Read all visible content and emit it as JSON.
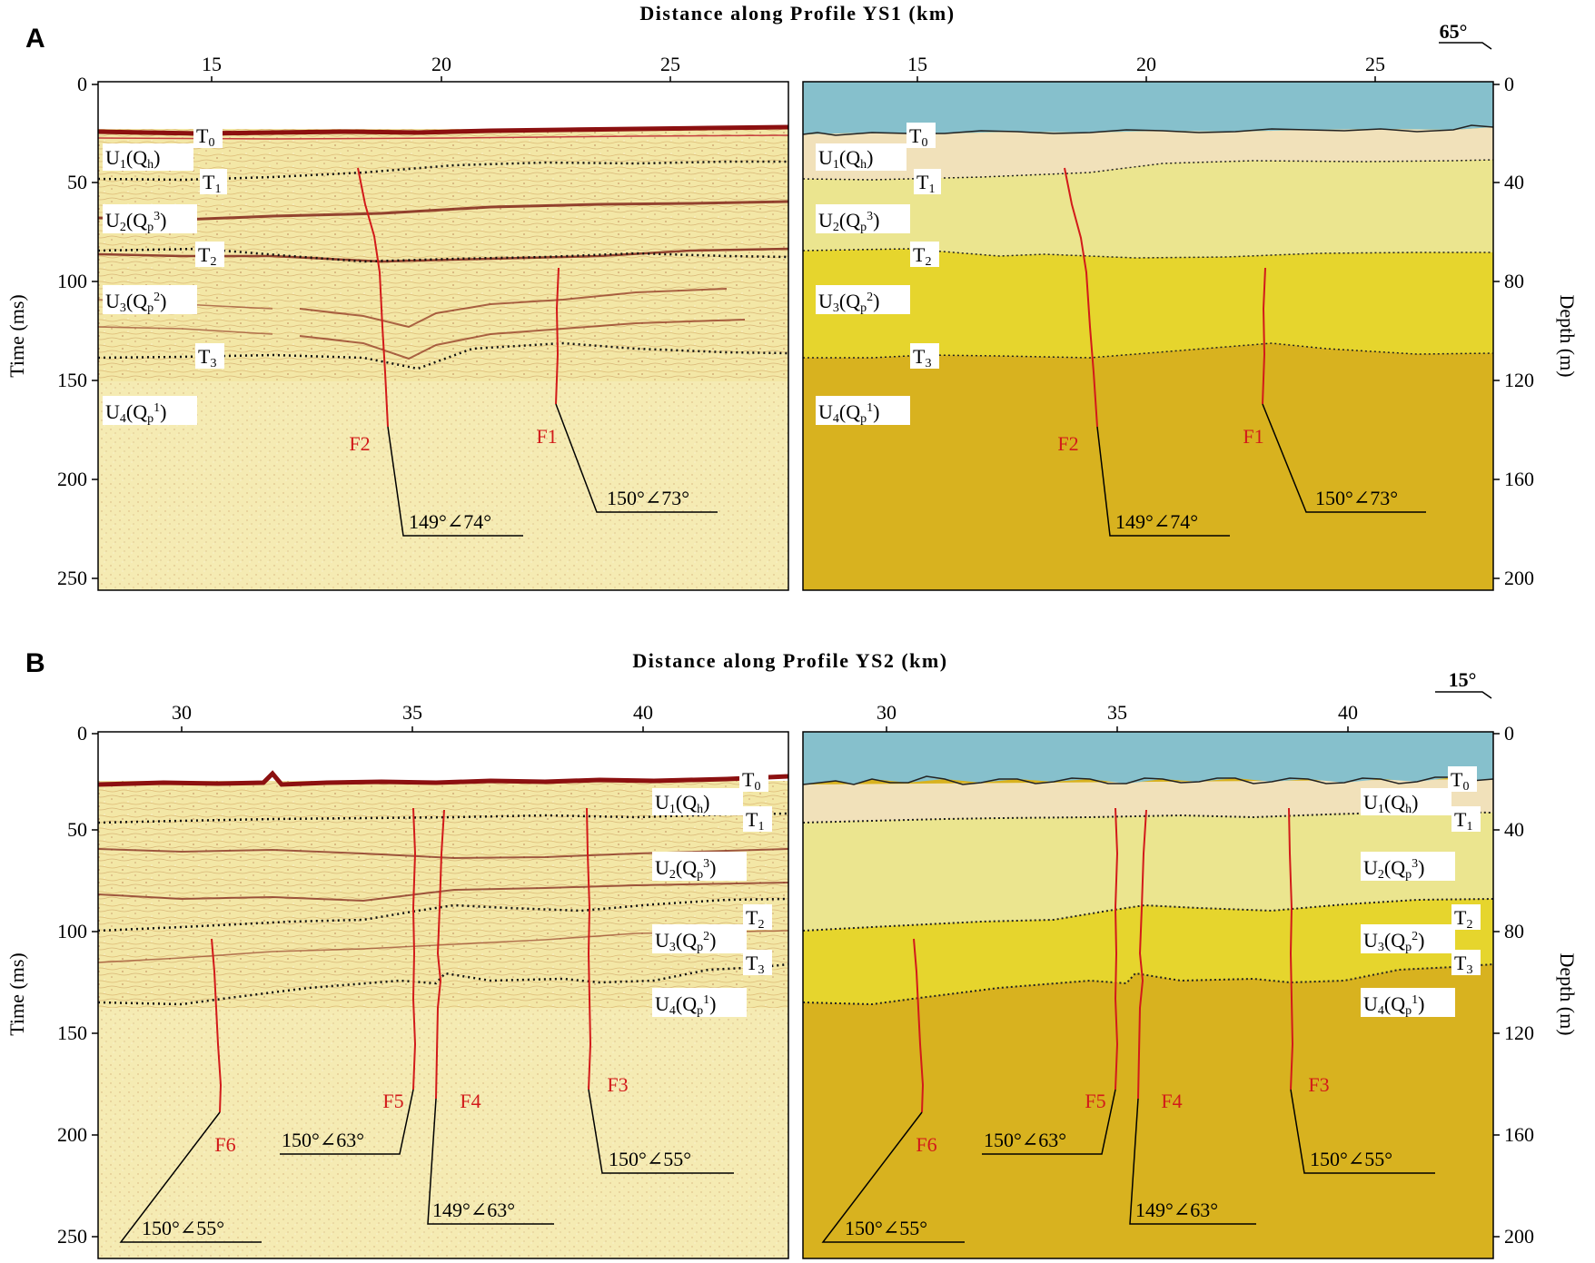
{
  "panel_a": {
    "letter": "A",
    "title": "Distance along Profile YS1 (km)",
    "orientation": "65°",
    "x_ticks": [
      "15",
      "20",
      "25"
    ],
    "time_ticks": [
      "0",
      "50",
      "100",
      "150",
      "200",
      "250"
    ],
    "depth_ticks": [
      "0",
      "40",
      "80",
      "120",
      "160",
      "200"
    ],
    "time_label": "Time (ms)",
    "depth_label": "Depth (m)",
    "faults": [
      {
        "name": "F2",
        "attitude": "149°∠74°"
      },
      {
        "name": "F1",
        "attitude": "150°∠73°"
      }
    ]
  },
  "panel_b": {
    "letter": "B",
    "title": "Distance along Profile YS2 (km)",
    "orientation": "15°",
    "x_ticks": [
      "30",
      "35",
      "40"
    ],
    "time_ticks": [
      "0",
      "50",
      "100",
      "150",
      "200",
      "250"
    ],
    "depth_ticks": [
      "0",
      "40",
      "80",
      "120",
      "160",
      "200"
    ],
    "time_label": "Time (ms)",
    "depth_label": "Depth (m)",
    "faults": [
      {
        "name": "F6",
        "attitude": "150°∠55°"
      },
      {
        "name": "F5",
        "attitude": "150°∠63°"
      },
      {
        "name": "F4",
        "attitude": "149°∠63°"
      },
      {
        "name": "F3",
        "attitude": "150°∠55°"
      }
    ]
  },
  "reflectors": {
    "t0": "T",
    "t0_sub": "0",
    "t1": "T",
    "t1_sub": "1",
    "t2": "T",
    "t2_sub": "2",
    "t3": "T",
    "t3_sub": "3"
  },
  "units": {
    "u1": {
      "u": "U",
      "n": "1",
      "q": "(Q",
      "sub": "h",
      "close": ")"
    },
    "u2": {
      "u": "U",
      "n": "2",
      "q": "(Q",
      "sub": "p",
      "sup": "3",
      "close": ")"
    },
    "u3": {
      "u": "U",
      "n": "3",
      "q": "(Q",
      "sub": "p",
      "sup": "2",
      "close": ")"
    },
    "u4": {
      "u": "U",
      "n": "4",
      "q": "(Q",
      "sub": "p",
      "sup": "1",
      "close": ")"
    }
  },
  "colors": {
    "water": "#86c0cc",
    "unit1": "#f1e1ba",
    "unit2": "#ebe58f",
    "unit3": "#e6d52d",
    "unit4": "#d8b21f",
    "fault": "#d21a1a",
    "seismic_bg": "#f3e7a6",
    "seabed": "#8c1010"
  }
}
